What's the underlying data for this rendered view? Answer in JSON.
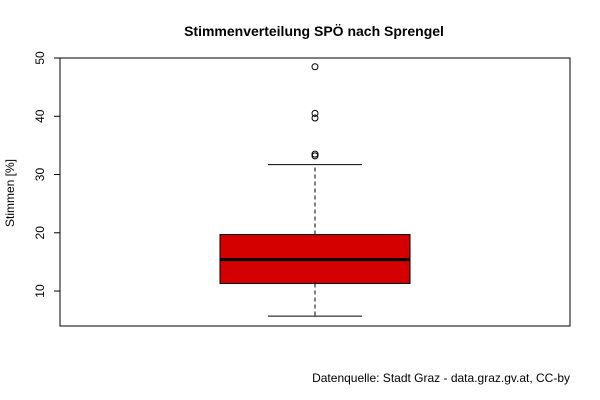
{
  "chart_data": {
    "type": "box",
    "title": "Stimmenverteilung SPÖ nach Sprengel",
    "ylabel": "Stimmen [%]",
    "ylim": [
      4,
      50
    ],
    "yticks": [
      10,
      20,
      30,
      40,
      50
    ],
    "box": {
      "whisker_low": 5.7,
      "q1": 11.3,
      "median": 15.4,
      "q3": 19.7,
      "whisker_high": 31.7,
      "outliers": [
        33.2,
        33.5,
        39.7,
        40.5,
        48.5
      ],
      "fill_color": "#d40000"
    },
    "caption": "Datenquelle: Stadt Graz - data.graz.gv.at, CC-by"
  }
}
